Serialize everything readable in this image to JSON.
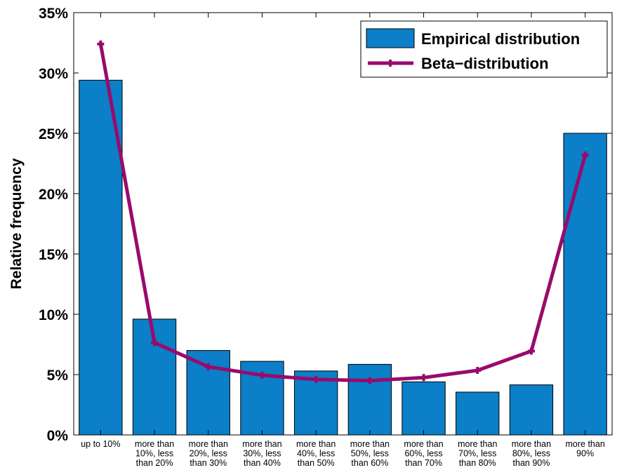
{
  "chart_data": {
    "type": "bar",
    "ylabel": "Relative frequency",
    "xlabel": "",
    "ylim": [
      0,
      35
    ],
    "yticks": [
      0,
      5,
      10,
      15,
      20,
      25,
      30,
      35
    ],
    "ytick_labels": [
      "0%",
      "5%",
      "10%",
      "15%",
      "20%",
      "25%",
      "30%",
      "35%"
    ],
    "categories": [
      [
        "up to 10%"
      ],
      [
        "more than",
        "10%, less",
        "than 20%"
      ],
      [
        "more than",
        "20%, less",
        "than 30%"
      ],
      [
        "more than",
        "30%, less",
        "than 40%"
      ],
      [
        "more than",
        "40%, less",
        "than 50%"
      ],
      [
        "more than",
        "50%, less",
        "than 60%"
      ],
      [
        "more than",
        "60%, less",
        "than 70%"
      ],
      [
        "more than",
        "70%, less",
        "than 80%"
      ],
      [
        "more than",
        "80%, less",
        "than 90%"
      ],
      [
        "more than",
        "90%"
      ]
    ],
    "series": [
      {
        "name": "Empirical distribution",
        "type": "bar",
        "color": "#0b7fc7",
        "values": [
          29.4,
          9.6,
          7.0,
          6.1,
          5.3,
          5.85,
          4.4,
          3.55,
          4.15,
          25.0
        ]
      },
      {
        "name": "Beta−distribution",
        "type": "line",
        "color": "#9a0a6d",
        "values": [
          32.4,
          7.65,
          5.65,
          4.95,
          4.6,
          4.5,
          4.75,
          5.35,
          6.95,
          23.2
        ]
      }
    ],
    "legend_position": "top-right",
    "grid": false
  }
}
